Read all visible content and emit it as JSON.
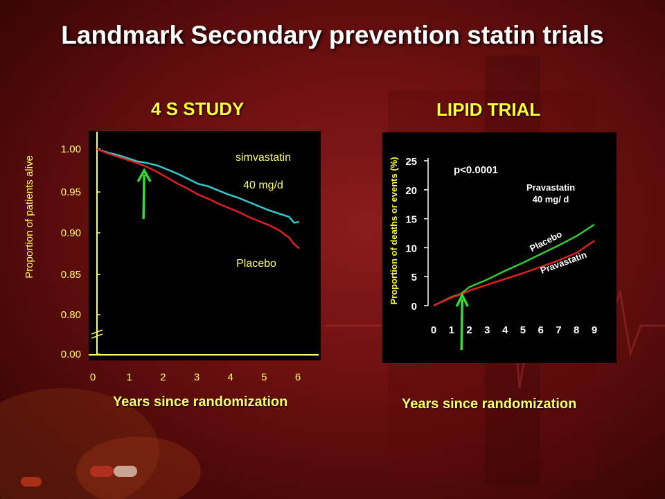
{
  "slide": {
    "title": "Landmark  Secondary prevention statin trials"
  },
  "chart_data": [
    {
      "type": "line",
      "title": "4 S STUDY",
      "xlabel": "Years since randomization",
      "ylabel": "Proportion of patients alive",
      "x_ticks": [
        "0",
        "1",
        "2",
        "3",
        "4",
        "5",
        "6"
      ],
      "y_ticks": [
        "1.00",
        "0.95",
        "0.90",
        "0.85",
        "0.80",
        "0.00"
      ],
      "xlim": [
        0,
        6
      ],
      "ylim": [
        0.8,
        1.0
      ],
      "axis_break": true,
      "series": [
        {
          "name": "simvastatin",
          "color": "#33cccc",
          "x": [
            0,
            0.3,
            0.6,
            0.9,
            1.2,
            1.5,
            1.8,
            2.1,
            2.4,
            2.7,
            3.0,
            3.3,
            3.6,
            3.9,
            4.2,
            4.5,
            4.8,
            5.1,
            5.4,
            5.7,
            5.85,
            6.0
          ],
          "y": [
            1.0,
            0.996,
            0.993,
            0.989,
            0.985,
            0.983,
            0.98,
            0.975,
            0.97,
            0.964,
            0.958,
            0.955,
            0.95,
            0.945,
            0.941,
            0.936,
            0.931,
            0.926,
            0.922,
            0.918,
            0.911,
            0.912
          ]
        },
        {
          "name": "Placebo",
          "color": "#e02020",
          "x": [
            0,
            0.3,
            0.6,
            0.9,
            1.2,
            1.5,
            1.8,
            2.1,
            2.4,
            2.7,
            3.0,
            3.3,
            3.6,
            3.9,
            4.2,
            4.5,
            4.8,
            5.1,
            5.4,
            5.7,
            5.85,
            6.0
          ],
          "y": [
            1.0,
            0.995,
            0.991,
            0.987,
            0.983,
            0.978,
            0.972,
            0.965,
            0.958,
            0.952,
            0.945,
            0.94,
            0.934,
            0.929,
            0.924,
            0.918,
            0.913,
            0.908,
            0.902,
            0.893,
            0.885,
            0.88
          ]
        }
      ],
      "annotations": {
        "line1": "simvastatin",
        "line2": "40 mg/d",
        "placebo": "Placebo"
      },
      "arrow_x": 1.4,
      "legend": "none",
      "grid": false
    },
    {
      "type": "line",
      "title": "LIPID TRIAL",
      "xlabel": "Years since randomization",
      "ylabel": "Proportion of deaths or events (%)",
      "x_ticks": [
        "0",
        "1",
        "2",
        "3",
        "4",
        "5",
        "6",
        "7",
        "8",
        "9"
      ],
      "y_ticks": [
        "25",
        "20",
        "15",
        "10",
        "5",
        "0"
      ],
      "xlim": [
        0,
        9
      ],
      "ylim": [
        0,
        25
      ],
      "series": [
        {
          "name": "Placebo",
          "color": "#33cc33",
          "x": [
            0,
            1,
            1.5,
            2,
            3,
            4,
            5,
            6,
            7,
            8,
            9
          ],
          "y": [
            0,
            1.5,
            2.0,
            3.2,
            4.5,
            6.0,
            7.4,
            8.9,
            10.4,
            12.0,
            14.0
          ]
        },
        {
          "name": "Pravastatin",
          "color": "#e02020",
          "x": [
            0,
            1,
            1.5,
            2,
            3,
            4,
            5,
            6,
            7,
            8,
            9
          ],
          "y": [
            0,
            1.4,
            1.9,
            2.6,
            3.6,
            4.6,
            5.6,
            6.7,
            7.8,
            9.1,
            11.2
          ]
        }
      ],
      "annotations": {
        "pvalue": "p<0.0001",
        "drug_line1": "Pravastatin",
        "drug_line2": "40 mg/ d",
        "placebo": "Placebo",
        "pravastatin": "Pravastatin"
      },
      "arrow_x": 1.6,
      "legend": "none",
      "grid": false
    }
  ]
}
